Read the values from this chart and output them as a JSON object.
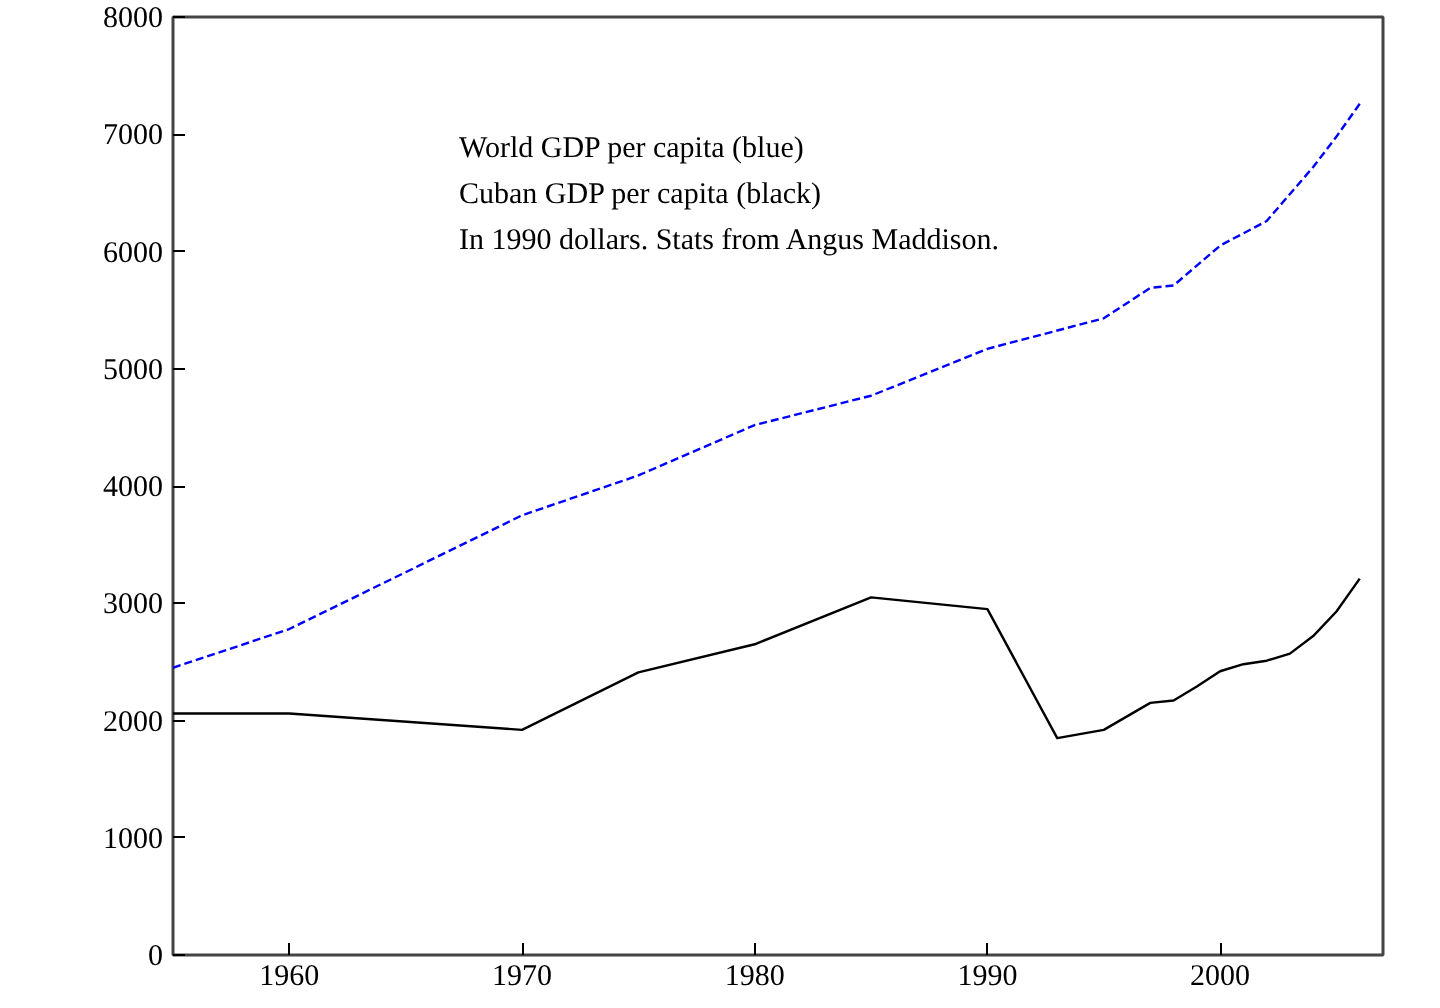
{
  "chart_data": {
    "type": "line",
    "xlim": [
      1955,
      2007
    ],
    "ylim": [
      0,
      8000
    ],
    "xticks": [
      1960,
      1970,
      1980,
      1990,
      2000
    ],
    "yticks": [
      0,
      1000,
      2000,
      3000,
      4000,
      5000,
      6000,
      7000,
      8000
    ],
    "grid": false,
    "annotations": [
      "World GDP per capita (blue)",
      "Cuban GDP per capita (black)",
      "In 1990 dollars. Stats from Angus Maddison."
    ],
    "series": [
      {
        "color": "#0000ff",
        "line_style": "dashed",
        "x": [
          1955,
          1960,
          1970,
          1975,
          1980,
          1985,
          1990,
          1995,
          1997,
          1998,
          2000,
          2002,
          2003,
          2004,
          2005,
          2006
        ],
        "values": [
          2450,
          2780,
          3750,
          4090,
          4520,
          4770,
          5170,
          5430,
          5690,
          5710,
          6050,
          6260,
          6490,
          6720,
          6980,
          7260
        ]
      },
      {
        "color": "#000000",
        "line_style": "solid",
        "x": [
          1955,
          1960,
          1970,
          1975,
          1980,
          1985,
          1990,
          1993,
          1995,
          1997,
          1998,
          1999,
          2000,
          2001,
          2002,
          2003,
          2004,
          2005,
          2006
        ],
        "values": [
          2060,
          2060,
          1920,
          2410,
          2650,
          3050,
          2950,
          1850,
          1920,
          2150,
          2170,
          2290,
          2420,
          2480,
          2510,
          2570,
          2720,
          2930,
          3210
        ]
      }
    ]
  }
}
